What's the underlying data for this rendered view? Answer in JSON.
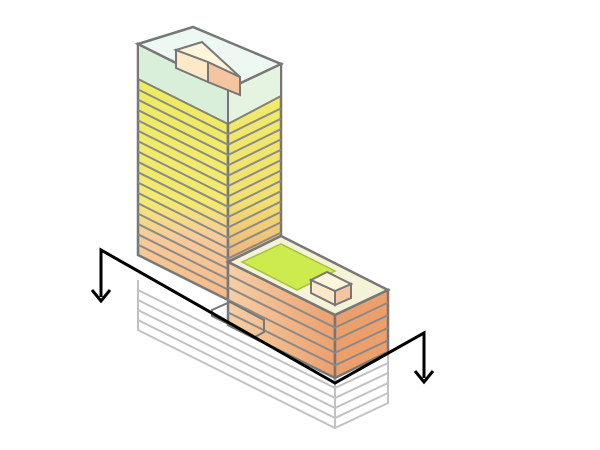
{
  "diagram": {
    "kind": "isometric-building-section",
    "tower_floors_yellow": 12,
    "tower_floors_orange": 5,
    "podium_floors_orange": 5,
    "underground_levels": 5,
    "colors": {
      "outline": "#777777",
      "outline_light": "#bbbbbb",
      "glass_top": "#d8f0e8",
      "yellow_front": "#ecec5a",
      "yellow_side": "#f0ef70",
      "orange_front": "#f6c9a0",
      "orange_side": "#efa877",
      "green_roof": "#cdeb4e",
      "roof_box": "#fbe8c8",
      "section_line": "#000000"
    },
    "icons": [
      "section-arrow-left-icon",
      "section-arrow-right-icon"
    ]
  }
}
